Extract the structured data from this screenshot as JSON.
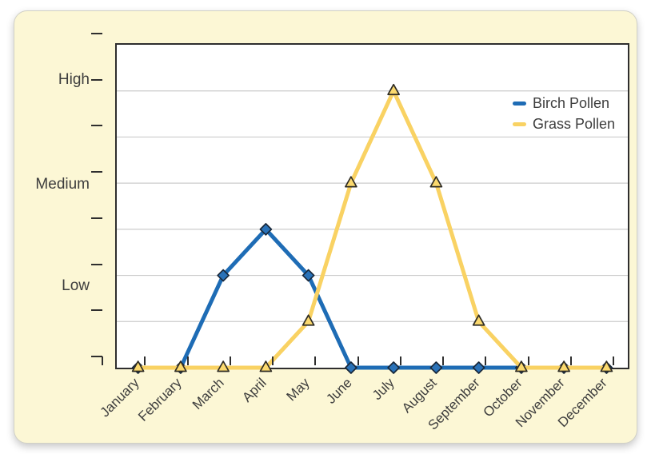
{
  "colors": {
    "card_background": "#fcf7d5",
    "plot_background": "#ffffff",
    "axis": "#2e2e2e",
    "gridline": "#cccccc",
    "text": "#3d3d3d",
    "birch_blue": "#1e6cb5",
    "birch_marker_fill": "#2a72b8",
    "birch_marker_stroke": "#19283a",
    "grass_yellow": "#f9d263",
    "grass_marker_fill": "#fbd96e",
    "grass_marker_stroke": "#2f2c24"
  },
  "axis": {
    "y_labels": [
      {
        "text": "High",
        "value": 6.0
      },
      {
        "text": "Medium",
        "value": 3.72
      },
      {
        "text": "Low",
        "value": 1.52
      }
    ]
  },
  "legend": {
    "items": [
      {
        "label": "Birch Pollen",
        "color": "#1e6cb5"
      },
      {
        "label": "Grass Pollen",
        "color": "#f9d263"
      }
    ]
  },
  "chart_data": {
    "type": "line",
    "title": "",
    "xlabel": "",
    "ylabel": "",
    "categories": [
      "January",
      "February",
      "March",
      "April",
      "May",
      "June",
      "July",
      "August",
      "September",
      "October",
      "November",
      "December"
    ],
    "series": [
      {
        "name": "Birch Pollen",
        "color": "#1e6cb5",
        "marker": "diamond",
        "marker_fill": "#2a72b8",
        "marker_stroke": "#19283a",
        "values": [
          0,
          0,
          2,
          3,
          2,
          0,
          0,
          0,
          0,
          0,
          0,
          0
        ]
      },
      {
        "name": "Grass Pollen",
        "color": "#f9d263",
        "marker": "triangle",
        "marker_fill": "#fbd96e",
        "marker_stroke": "#2f2c24",
        "values": [
          0,
          0,
          0,
          0,
          1,
          4,
          6,
          4,
          1,
          0,
          0,
          0
        ]
      }
    ],
    "ylim": [
      0,
      7
    ],
    "y_axis_scale_labels": [
      "High",
      "Medium",
      "Low"
    ],
    "y_gridline_values": [
      1,
      2,
      3,
      4,
      5,
      6
    ],
    "grid": true,
    "legend_position": "top-right"
  }
}
